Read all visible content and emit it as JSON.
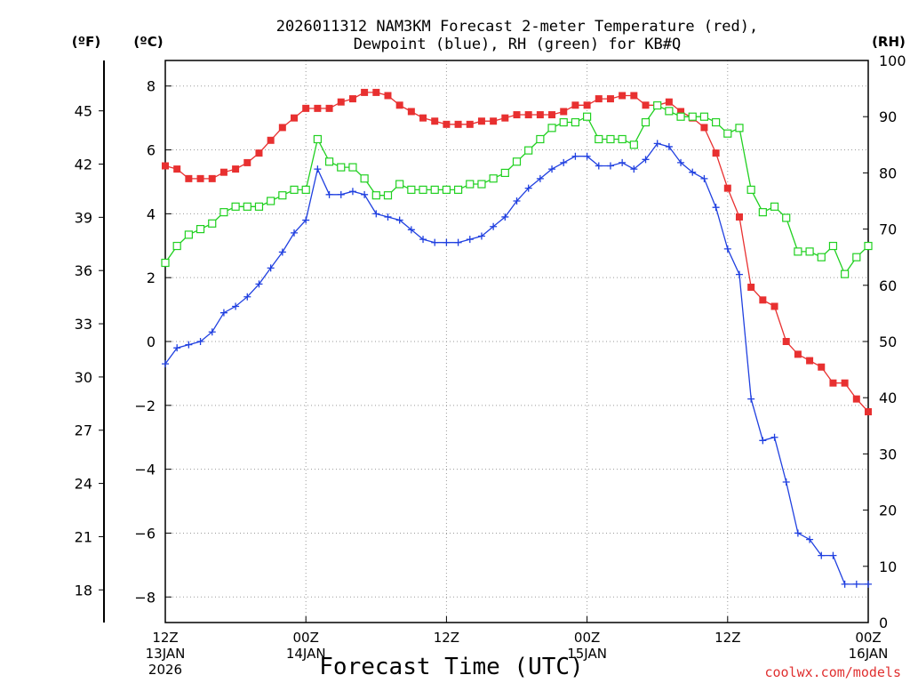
{
  "chart_data": {
    "type": "line",
    "title_line1": "2026011312 NAM3KM Forecast 2-meter Temperature (red),",
    "title_line2": "Dewpoint (blue), RH (green) for KB#Q",
    "xlabel": "Forecast Time (UTC)",
    "credit": "coolwx.com/models",
    "units": {
      "fahrenheit": "(ºF)",
      "celsius": "(ºC)",
      "rh": "(RH)"
    },
    "x_range_hours": [
      0,
      60
    ],
    "celsius_range": [
      -8.8,
      8.8
    ],
    "rh_range": [
      0,
      100
    ],
    "x_ticks": [
      {
        "hour": 0,
        "line1": "12Z",
        "line2": "13JAN",
        "line3": "2026"
      },
      {
        "hour": 12,
        "line1": "00Z",
        "line2": "14JAN",
        "line3": ""
      },
      {
        "hour": 24,
        "line1": "12Z",
        "line2": "",
        "line3": ""
      },
      {
        "hour": 36,
        "line1": "00Z",
        "line2": "15JAN",
        "line3": ""
      },
      {
        "hour": 48,
        "line1": "12Z",
        "line2": "",
        "line3": ""
      },
      {
        "hour": 60,
        "line1": "00Z",
        "line2": "16JAN",
        "line3": ""
      }
    ],
    "celsius_ticks": [
      "8",
      "6",
      "4",
      "2",
      "0",
      "−2",
      "−4",
      "−6",
      "−8"
    ],
    "fahrenheit_ticks": [
      "45",
      "42",
      "39",
      "36",
      "33",
      "30",
      "27",
      "24",
      "21",
      "18"
    ],
    "rh_ticks": [
      "100",
      "90",
      "80",
      "70",
      "60",
      "50",
      "40",
      "30",
      "20",
      "10",
      "0"
    ],
    "series": [
      {
        "name": "Temperature",
        "color": "#e83030",
        "marker": "filled-square",
        "values": [
          5.5,
          5.4,
          5.1,
          5.1,
          5.1,
          5.3,
          5.4,
          5.6,
          5.9,
          6.3,
          6.7,
          7.0,
          7.3,
          7.3,
          7.3,
          7.5,
          7.6,
          7.8,
          7.8,
          7.7,
          7.4,
          7.2,
          7.0,
          6.9,
          6.8,
          6.8,
          6.8,
          6.9,
          6.9,
          7.0,
          7.1,
          7.1,
          7.1,
          7.1,
          7.2,
          7.4,
          7.4,
          7.6,
          7.6,
          7.7,
          7.7,
          7.4,
          7.4,
          7.5,
          7.2,
          7.0,
          6.7,
          5.9,
          4.8,
          3.9,
          1.7,
          1.3,
          1.1,
          0.0,
          -0.4,
          -0.6,
          -0.8,
          -1.3,
          -1.3,
          -1.8,
          -2.2
        ]
      },
      {
        "name": "Dewpoint",
        "color": "#2040e0",
        "marker": "plus",
        "values": [
          -0.7,
          -0.2,
          -0.1,
          0.0,
          0.3,
          0.9,
          1.1,
          1.4,
          1.8,
          2.3,
          2.8,
          3.4,
          3.8,
          5.4,
          4.6,
          4.6,
          4.7,
          4.6,
          4.0,
          3.9,
          3.8,
          3.5,
          3.2,
          3.1,
          3.1,
          3.1,
          3.2,
          3.3,
          3.6,
          3.9,
          4.4,
          4.8,
          5.1,
          5.4,
          5.6,
          5.8,
          5.8,
          5.5,
          5.5,
          5.6,
          5.4,
          5.7,
          6.2,
          6.1,
          5.6,
          5.3,
          5.1,
          4.2,
          2.9,
          2.1,
          -1.8,
          -3.1,
          -3.0,
          -4.4,
          -6.0,
          -6.2,
          -6.7,
          -6.7,
          -7.6,
          -7.6,
          -7.6
        ]
      },
      {
        "name": "RH",
        "color": "#20d020",
        "marker": "open-square",
        "values": [
          64,
          67,
          69,
          70,
          71,
          73,
          74,
          74,
          74,
          75,
          76,
          77,
          77,
          86,
          82,
          81,
          81,
          79,
          76,
          76,
          78,
          77,
          77,
          77,
          77,
          77,
          78,
          78,
          79,
          80,
          82,
          84,
          86,
          88,
          89,
          89,
          90,
          86,
          86,
          86,
          85,
          89,
          92,
          91,
          90,
          90,
          90,
          89,
          87,
          88,
          77,
          73,
          74,
          72,
          66,
          66,
          65,
          67,
          62,
          65,
          67
        ]
      }
    ]
  }
}
